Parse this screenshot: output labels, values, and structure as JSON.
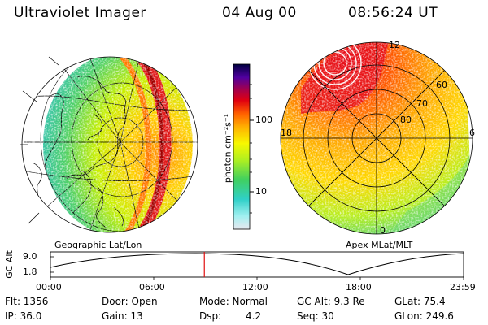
{
  "header": {
    "title": "Ultraviolet Imager",
    "date": "04 Aug 00",
    "time": "08:56:24 UT"
  },
  "colorbar": {
    "unit_label": "photon cm⁻²s⁻¹",
    "ticks": [
      "100",
      "10"
    ]
  },
  "geo_panel": {
    "caption": "Geographic Lat/Lon"
  },
  "apex_panel": {
    "caption": "Apex MLat/MLT",
    "mlt_labels": [
      "12",
      "18",
      "6",
      "0"
    ],
    "lat_labels": [
      "60",
      "70",
      "80"
    ]
  },
  "altitude_plot": {
    "ylabel": "GC Alt",
    "yticks": [
      "9.0",
      "1.8"
    ],
    "time_ticks": [
      "00:00",
      "06:00",
      "12:00",
      "18:00",
      "23:59"
    ],
    "current_time_fraction": 0.3725
  },
  "info": {
    "flt": "Flt: 1356",
    "ip": "IP: 36.0",
    "door": "Door: Open",
    "gain": "Gain: 13",
    "mode": "Mode: Normal",
    "dsp_label": "Dsp:",
    "dsp_value": "4.2",
    "gc_alt": "GC Alt: 9.3 Re",
    "seq": "Seq: 30",
    "glat": "GLat: 75.4",
    "glon": "GLon: 249.6"
  },
  "colors": {
    "marker": "#e01010",
    "grid": "#000000"
  }
}
